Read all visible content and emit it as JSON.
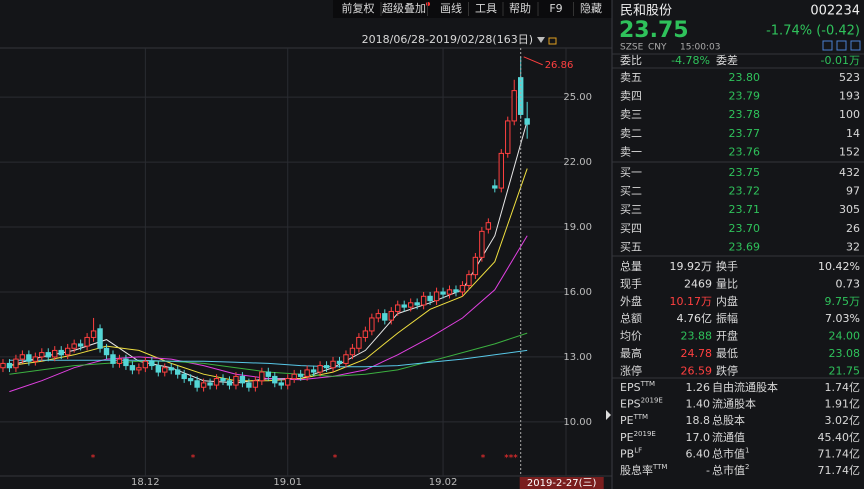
{
  "toolbar": [
    "前复权",
    "超级叠加",
    "画线",
    "工具",
    "帮助",
    "F9",
    "隐藏"
  ],
  "chart": {
    "type": "candlestick",
    "range_label": "2018/06/28-2019/02/28(163日)",
    "up_color": "#ff4040",
    "down_color": "#54d6d6",
    "xlim": [
      -0.46,
      87
    ],
    "ylim": [
      7.5,
      28.1
    ],
    "yticks": [
      {
        "value": 10,
        "label": "10.00"
      },
      {
        "value": 13,
        "label": "13.00"
      },
      {
        "value": 16,
        "label": "16.00"
      },
      {
        "value": 19,
        "label": "19.00"
      },
      {
        "value": 22,
        "label": "22.00"
      },
      {
        "value": 25,
        "label": "25.00"
      }
    ],
    "xticks": [
      {
        "value": 22,
        "label": "18.12"
      },
      {
        "value": 44,
        "label": "19.01"
      },
      {
        "value": 68,
        "label": "19.02"
      }
    ],
    "cursor": {
      "value": 80,
      "label": "2019-2-27(三)"
    },
    "open": [
      12.5,
      12.7,
      12.5,
      12.9,
      13.1,
      12.8,
      13.0,
      13.2,
      13.0,
      13.3,
      13.1,
      13.4,
      13.6,
      13.5,
      13.9,
      14.3,
      13.4,
      13.1,
      12.7,
      12.9,
      12.6,
      12.4,
      12.5,
      12.8,
      12.6,
      12.3,
      12.5,
      12.4,
      12.2,
      12.0,
      11.9,
      11.6,
      11.8,
      11.7,
      12.0,
      11.9,
      11.7,
      12.1,
      11.8,
      11.6,
      11.9,
      12.3,
      12.1,
      11.8,
      11.7,
      12.0,
      12.2,
      12.1,
      12.4,
      12.3,
      12.6,
      12.5,
      12.8,
      12.7,
      13.1,
      13.4,
      13.9,
      14.2,
      14.8,
      15.0,
      14.7,
      15.1,
      15.4,
      15.3,
      15.5,
      15.4,
      15.8,
      15.6,
      16.0,
      15.9,
      16.1,
      16.0,
      16.3,
      16.8,
      17.6,
      18.9,
      20.9,
      20.8,
      22.4,
      23.9,
      25.9,
      24.0
    ],
    "high": [
      12.9,
      12.9,
      13.1,
      13.3,
      13.3,
      13.2,
      13.4,
      13.4,
      13.5,
      13.5,
      13.6,
      13.8,
      13.8,
      14.1,
      14.8,
      14.5,
      13.6,
      13.3,
      13.1,
      13.1,
      12.8,
      12.7,
      13.0,
      13.0,
      12.8,
      12.7,
      12.7,
      12.6,
      12.4,
      12.2,
      12.1,
      12.0,
      12.0,
      12.2,
      12.2,
      12.1,
      12.3,
      12.3,
      12.0,
      12.1,
      12.5,
      12.5,
      12.3,
      12.0,
      12.2,
      12.4,
      12.4,
      12.6,
      12.6,
      12.8,
      12.8,
      13.0,
      13.0,
      13.3,
      13.6,
      14.1,
      14.4,
      15.0,
      15.2,
      15.2,
      15.3,
      15.6,
      15.6,
      15.7,
      15.7,
      16.0,
      16.0,
      16.2,
      16.2,
      16.3,
      16.3,
      16.5,
      17.0,
      17.8,
      19.0,
      19.4,
      21.2,
      22.6,
      24.1,
      25.8,
      26.86,
      24.78
    ],
    "low": [
      12.3,
      12.3,
      12.3,
      12.7,
      12.6,
      12.6,
      12.8,
      12.8,
      12.8,
      12.9,
      12.9,
      13.2,
      13.3,
      13.3,
      13.7,
      13.2,
      12.9,
      12.5,
      12.5,
      12.4,
      12.2,
      12.2,
      12.3,
      12.4,
      12.1,
      12.1,
      12.2,
      12.0,
      11.8,
      11.7,
      11.4,
      11.4,
      11.5,
      11.5,
      11.7,
      11.5,
      11.5,
      11.6,
      11.4,
      11.4,
      11.7,
      11.9,
      11.6,
      11.5,
      11.5,
      11.8,
      11.9,
      11.9,
      12.1,
      12.1,
      12.3,
      12.3,
      12.5,
      12.5,
      12.9,
      13.2,
      13.7,
      14.0,
      14.6,
      14.5,
      14.5,
      14.9,
      15.1,
      15.1,
      15.2,
      15.2,
      15.4,
      15.4,
      15.7,
      15.7,
      15.8,
      15.8,
      16.1,
      16.6,
      17.4,
      18.7,
      20.6,
      20.6,
      22.2,
      23.7,
      24.0,
      23.08
    ],
    "close": [
      12.7,
      12.5,
      12.9,
      13.1,
      12.8,
      13.0,
      13.2,
      13.0,
      13.3,
      13.1,
      13.4,
      13.6,
      13.5,
      13.9,
      14.2,
      13.4,
      13.1,
      12.7,
      12.9,
      12.6,
      12.4,
      12.5,
      12.8,
      12.6,
      12.3,
      12.5,
      12.4,
      12.2,
      12.0,
      11.9,
      11.6,
      11.8,
      11.7,
      12.0,
      11.9,
      11.7,
      12.1,
      11.8,
      11.6,
      11.9,
      12.3,
      12.1,
      11.8,
      11.7,
      12.0,
      12.2,
      12.1,
      12.4,
      12.3,
      12.6,
      12.5,
      12.8,
      12.7,
      13.1,
      13.4,
      13.9,
      14.2,
      14.8,
      15.0,
      14.7,
      15.1,
      15.4,
      15.3,
      15.5,
      15.4,
      15.8,
      15.6,
      16.0,
      15.9,
      16.1,
      16.0,
      16.3,
      16.8,
      17.6,
      18.8,
      19.2,
      20.8,
      22.4,
      23.9,
      25.3,
      24.2,
      23.75
    ],
    "moving_averages": [
      {
        "color": "#e8e8e8",
        "x": [
          1,
          6,
          11,
          16,
          21,
          26,
          31,
          36,
          41,
          46,
          51,
          56,
          61,
          66,
          71,
          76,
          81
        ],
        "values": [
          12.6,
          13.0,
          13.3,
          13.8,
          12.8,
          12.5,
          11.9,
          11.8,
          12.0,
          12.0,
          12.5,
          13.3,
          15.0,
          15.5,
          16.1,
          18.6,
          23.9
        ]
      },
      {
        "color": "#f0e040",
        "x": [
          1,
          6,
          11,
          16,
          21,
          26,
          31,
          36,
          41,
          46,
          51,
          56,
          61,
          66,
          71,
          76,
          81
        ],
        "values": [
          12.6,
          12.8,
          13.1,
          13.5,
          13.3,
          12.7,
          12.2,
          11.9,
          11.9,
          12.0,
          12.3,
          12.9,
          14.1,
          15.2,
          15.8,
          17.4,
          21.7
        ]
      },
      {
        "color": "#e040e0",
        "x": [
          1,
          6,
          11,
          16,
          21,
          26,
          31,
          36,
          41,
          46,
          51,
          56,
          61,
          66,
          71,
          76,
          81
        ],
        "values": [
          11.4,
          11.9,
          12.5,
          12.9,
          13.0,
          12.9,
          12.6,
          12.2,
          12.0,
          11.95,
          12.1,
          12.4,
          13.1,
          13.9,
          14.8,
          16.1,
          18.6
        ]
      },
      {
        "color": "#3cb040",
        "x": [
          1,
          6,
          11,
          16,
          21,
          26,
          31,
          36,
          41,
          46,
          51,
          56,
          61,
          66,
          71,
          76,
          81
        ],
        "values": [
          12.2,
          12.4,
          12.6,
          12.7,
          12.8,
          12.8,
          12.7,
          12.5,
          12.3,
          12.2,
          12.1,
          12.2,
          12.4,
          12.8,
          13.2,
          13.6,
          14.1
        ]
      },
      {
        "color": "#58c8e8",
        "x": [
          1,
          6,
          11,
          16,
          21,
          26,
          31,
          36,
          41,
          46,
          51,
          56,
          61,
          66,
          71,
          76,
          81
        ],
        "values": [
          12.85,
          12.85,
          12.85,
          12.85,
          12.85,
          12.8,
          12.8,
          12.75,
          12.7,
          12.6,
          12.55,
          12.55,
          12.6,
          12.75,
          12.9,
          13.1,
          13.3
        ]
      }
    ]
  },
  "quote": {
    "name": "民和股份",
    "code": "002234",
    "price": "23.75",
    "change": "-1.74% (-0.42)",
    "market": "SZSE",
    "currency": "CNY",
    "time": "15:00:03",
    "ratio": {
      "label": "委比",
      "value": "-4.78%",
      "label2": "委差",
      "value2": "-0.01万"
    },
    "asks": [
      [
        "卖五",
        "23.80",
        "523"
      ],
      [
        "卖四",
        "23.79",
        "193"
      ],
      [
        "卖三",
        "23.78",
        "100"
      ],
      [
        "卖二",
        "23.77",
        "14"
      ],
      [
        "卖一",
        "23.76",
        "152"
      ]
    ],
    "bids": [
      [
        "买一",
        "23.75",
        "432"
      ],
      [
        "买二",
        "23.72",
        "97"
      ],
      [
        "买三",
        "23.71",
        "305"
      ],
      [
        "买四",
        "23.70",
        "26"
      ],
      [
        "买五",
        "23.69",
        "32"
      ]
    ],
    "stats": [
      {
        "cells": [
          "总量",
          "19.92万",
          "换手",
          "10.42%"
        ],
        "colors": [
          "#e0e0e0",
          "#e0e0e0"
        ]
      },
      {
        "cells": [
          "现手",
          "2469",
          "量比",
          "0.73"
        ],
        "colors": [
          "#e0e0e0",
          "#e0e0e0"
        ]
      },
      {
        "cells": [
          "外盘",
          "10.17万",
          "内盘",
          "9.75万"
        ],
        "colors": [
          "#ff4040",
          "#2fc25b"
        ]
      },
      {
        "cells": [
          "总额",
          "4.76亿",
          "振幅",
          "7.03%"
        ],
        "colors": [
          "#e0e0e0",
          "#e0e0e0"
        ]
      },
      {
        "cells": [
          "均价",
          "23.88",
          "开盘",
          "24.00"
        ],
        "colors": [
          "#2fc25b",
          "#2fc25b"
        ]
      },
      {
        "cells": [
          "最高",
          "24.78",
          "最低",
          "23.08"
        ],
        "colors": [
          "#ff4040",
          "#2fc25b"
        ]
      },
      {
        "cells": [
          "涨停",
          "26.59",
          "跌停",
          "21.75"
        ],
        "colors": [
          "#ff4040",
          "#2fc25b"
        ]
      }
    ],
    "fundamentals": [
      {
        "label": "EPS",
        "sup": "TTM",
        "value": "1.26",
        "label2": "自由流通股本",
        "value2": "1.74亿"
      },
      {
        "label": "EPS",
        "sup": "2019E",
        "value": "1.40",
        "label2": "流通股本",
        "value2": "1.91亿"
      },
      {
        "label": "PE",
        "sup": "TTM",
        "value": "18.8",
        "label2": "总股本",
        "value2": "3.02亿"
      },
      {
        "label": "PE",
        "sup": "2019E",
        "value": "17.0",
        "label2": "流通值",
        "value2": "45.40亿"
      },
      {
        "label": "PB",
        "sup": "LF",
        "value": "6.40",
        "label2": "总市值",
        "sup2": "1",
        "value2": "71.74亿"
      },
      {
        "label": "股息率",
        "sup": "TTM",
        "value": "-",
        "label2": "总市值",
        "sup2": "2",
        "value2": "71.74亿"
      }
    ]
  }
}
